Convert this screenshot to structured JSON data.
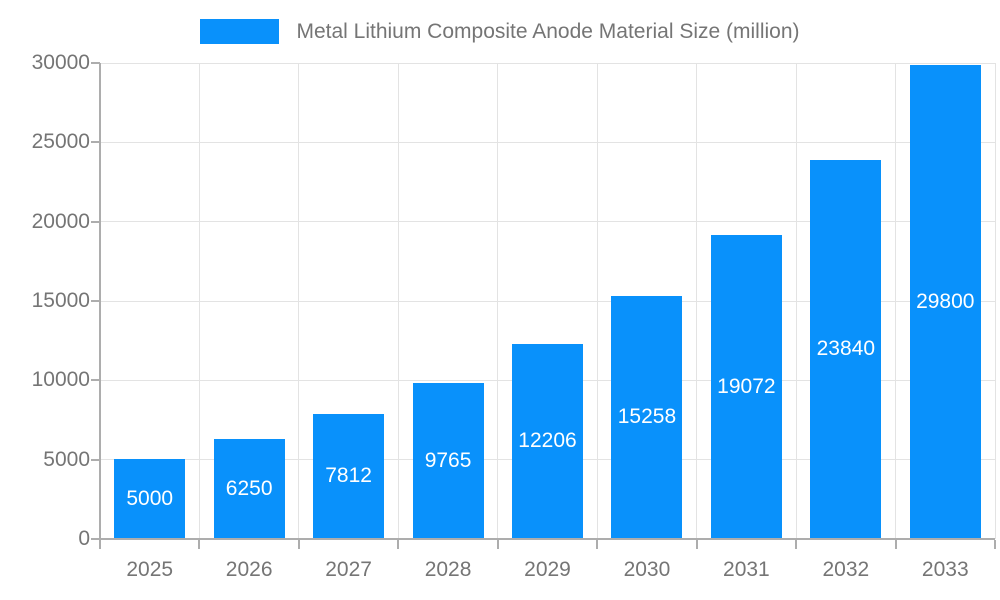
{
  "legend": {
    "label": "Metal Lithium Composite Anode Material Size (million)"
  },
  "colors": {
    "bar": "#0991fb",
    "axis_text": "#757575",
    "bar_label_text": "#ffffff",
    "gridline": "#e3e3e3",
    "axis_line": "#adadad",
    "background": "#ffffff"
  },
  "chart_data": {
    "type": "bar",
    "title": "Metal Lithium Composite Anode Material Size (million)",
    "categories": [
      "2025",
      "2026",
      "2027",
      "2028",
      "2029",
      "2030",
      "2031",
      "2032",
      "2033"
    ],
    "values": [
      5000,
      6250,
      7812,
      9765,
      12206,
      15258,
      19072,
      23840,
      29800
    ],
    "xlabel": "",
    "ylabel": "",
    "ylim": [
      0,
      30000
    ],
    "y_ticks": [
      0,
      5000,
      10000,
      15000,
      20000,
      25000,
      30000
    ],
    "grid": true,
    "legend_position": "top-center",
    "bar_value_labels": "inside-center"
  }
}
